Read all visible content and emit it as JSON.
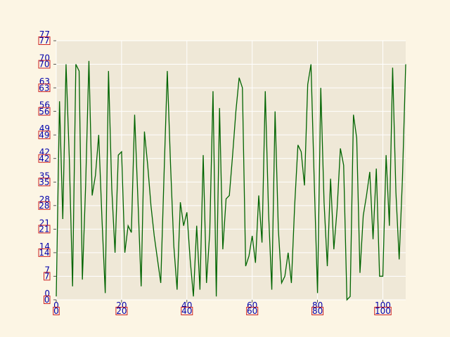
{
  "chart_data": {
    "type": "line",
    "title": "",
    "xlabel": "",
    "ylabel": "",
    "xlim": [
      0,
      107
    ],
    "ylim": [
      0,
      77
    ],
    "xticks": [
      0,
      20,
      40,
      60,
      80,
      100
    ],
    "yticks": [
      0,
      7,
      14,
      21,
      28,
      35,
      42,
      49,
      56,
      63,
      70,
      77
    ],
    "grid": true,
    "colors": {
      "figure_bg": "#fcf5e4",
      "plot_bg": "#efe8d7",
      "line": "#006400",
      "tick_text": "#0000aa",
      "tick_box": "#cc2222"
    },
    "series": [
      {
        "x": [
          0,
          1,
          2,
          3,
          4,
          5,
          6,
          7,
          8,
          9,
          10,
          11,
          12,
          13,
          14,
          15,
          16,
          17,
          18,
          19,
          20,
          21,
          22,
          23,
          24,
          25,
          26,
          27,
          28,
          29,
          30,
          31,
          32,
          33,
          34,
          35,
          36,
          37,
          38,
          39,
          40,
          41,
          42,
          43,
          44,
          45,
          46,
          47,
          48,
          49,
          50,
          51,
          52,
          53,
          54,
          55,
          56,
          57,
          58,
          59,
          60,
          61,
          62,
          63,
          64,
          65,
          66,
          67,
          68,
          69,
          70,
          71,
          72,
          73,
          74,
          75,
          76,
          77,
          78,
          79,
          80,
          81,
          82,
          83,
          84,
          85,
          86,
          87,
          88,
          89,
          90,
          91,
          92,
          93,
          94,
          95,
          96,
          97,
          98,
          99,
          100,
          101,
          102,
          103,
          104,
          105,
          106,
          107
        ],
        "values": [
          1,
          59,
          24,
          70,
          42,
          4,
          70,
          68,
          6,
          34,
          71,
          31,
          37,
          49,
          24,
          2,
          68,
          33,
          14,
          43,
          44,
          14,
          22,
          20,
          55,
          30,
          4,
          50,
          40,
          28,
          19,
          12,
          5,
          37,
          68,
          40,
          16,
          3,
          29,
          22,
          26,
          12,
          1,
          22,
          3,
          43,
          5,
          20,
          62,
          1,
          57,
          15,
          30,
          31,
          43,
          56,
          66,
          63,
          10,
          13,
          19,
          11,
          31,
          17,
          62,
          26,
          3,
          56,
          21,
          5,
          7,
          14,
          5,
          28,
          46,
          44,
          34,
          64,
          70,
          35,
          2,
          63,
          29,
          10,
          36,
          15,
          27,
          45,
          40,
          0,
          1,
          55,
          48,
          8,
          25,
          31,
          38,
          18,
          39,
          7,
          7,
          43,
          22,
          69,
          32,
          12,
          36,
          70
        ]
      }
    ]
  }
}
